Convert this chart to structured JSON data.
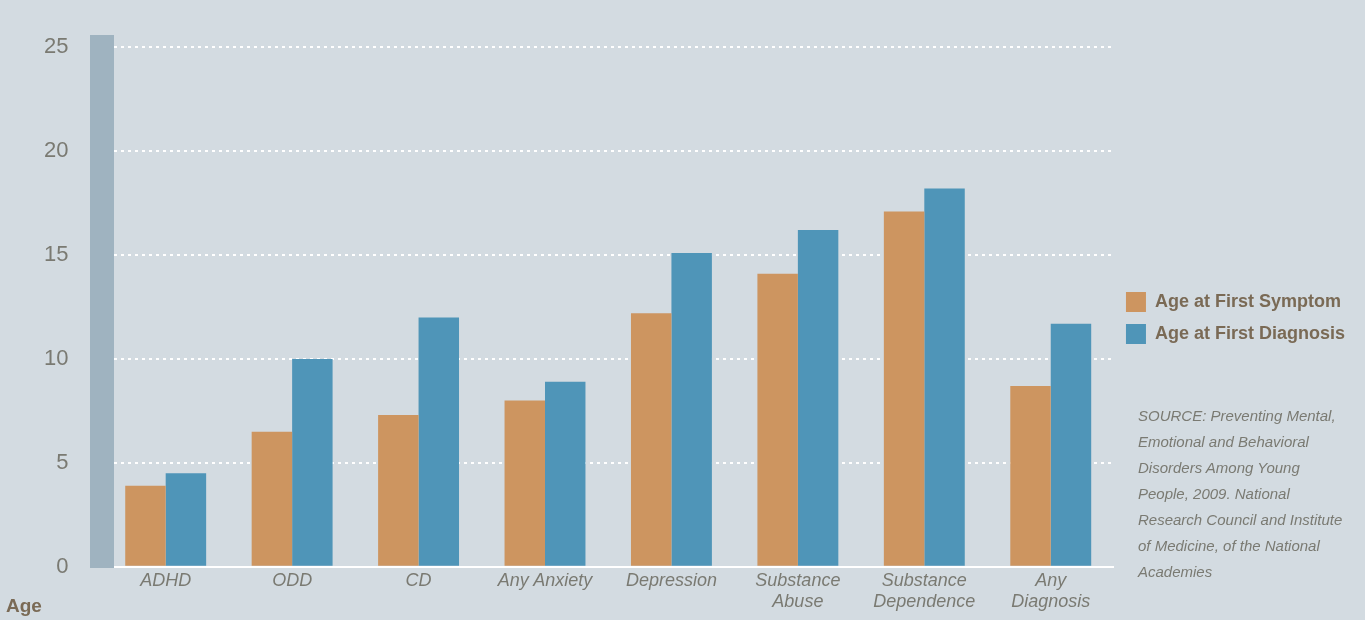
{
  "chart_data": {
    "type": "bar",
    "ylabel": "Age",
    "categories": [
      "ADHD",
      "ODD",
      "CD",
      "Any Anxiety",
      "Depression",
      "Substance Abuse",
      "Substance Dependence",
      "Any Diagnosis"
    ],
    "series": [
      {
        "name": "Age at First Symptom",
        "color": "#cd9560",
        "values": [
          3.9,
          6.5,
          7.3,
          8.0,
          12.2,
          14.1,
          17.1,
          8.7
        ]
      },
      {
        "name": "Age at First Diagnosis",
        "color": "#4f95b8",
        "values": [
          4.5,
          10.0,
          12.0,
          8.9,
          15.1,
          16.2,
          18.2,
          11.7
        ]
      }
    ],
    "ylim": [
      0,
      25
    ],
    "yticks": [
      0,
      5,
      10,
      15,
      20,
      25
    ],
    "grid": "y",
    "legend": "right",
    "annotations": [
      "SOURCE: Preventing Mental, Emotional and Behavioral Disorders Among Young People, 2009. National Research Council and Institute of Medicine, of the National Academies"
    ]
  }
}
